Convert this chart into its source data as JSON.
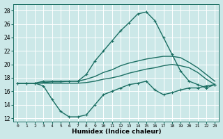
{
  "xlabel": "Humidex (Indice chaleur)",
  "xlim": [
    -0.5,
    23.5
  ],
  "ylim": [
    11.5,
    29
  ],
  "xticks": [
    0,
    1,
    2,
    3,
    4,
    5,
    6,
    7,
    8,
    9,
    10,
    11,
    12,
    13,
    14,
    15,
    16,
    17,
    18,
    19,
    20,
    21,
    22,
    23
  ],
  "yticks": [
    12,
    14,
    16,
    18,
    20,
    22,
    24,
    26,
    28
  ],
  "bg_color": "#cce8e8",
  "grid_color": "#ffffff",
  "line_color": "#1a6e62",
  "lines": [
    {
      "x": [
        0,
        1,
        2,
        3,
        4,
        5,
        6,
        7,
        8,
        9,
        10,
        11,
        12,
        13,
        14,
        15,
        16,
        17,
        18,
        19,
        20,
        21,
        22,
        23
      ],
      "y": [
        17.2,
        17.2,
        17.2,
        16.8,
        14.8,
        13.0,
        12.2,
        12.2,
        12.5,
        14.0,
        15.5,
        16.0,
        16.5,
        17.0,
        17.2,
        17.5,
        16.2,
        15.5,
        15.8,
        16.2,
        16.5,
        16.5,
        16.8,
        17.0
      ],
      "marker": true,
      "lw": 1.0
    },
    {
      "x": [
        0,
        1,
        2,
        3,
        4,
        5,
        6,
        7,
        8,
        9,
        10,
        11,
        12,
        13,
        14,
        15,
        16,
        17,
        18,
        19,
        20,
        21,
        22,
        23
      ],
      "y": [
        17.2,
        17.2,
        17.2,
        17.5,
        17.5,
        17.5,
        17.5,
        17.5,
        18.5,
        20.5,
        22.0,
        23.5,
        25.0,
        26.2,
        27.5,
        27.8,
        26.5,
        24.0,
        21.5,
        19.0,
        17.5,
        17.0,
        16.5,
        17.0
      ],
      "marker": true,
      "lw": 1.0
    },
    {
      "x": [
        0,
        1,
        2,
        3,
        4,
        5,
        6,
        7,
        8,
        9,
        10,
        11,
        12,
        13,
        14,
        15,
        16,
        17,
        18,
        19,
        20,
        21,
        22,
        23
      ],
      "y": [
        17.2,
        17.2,
        17.2,
        17.3,
        17.4,
        17.4,
        17.5,
        17.5,
        17.8,
        18.2,
        18.8,
        19.2,
        19.8,
        20.2,
        20.5,
        20.8,
        21.0,
        21.2,
        21.2,
        21.0,
        20.3,
        19.5,
        18.5,
        17.5
      ],
      "marker": false,
      "lw": 1.0
    },
    {
      "x": [
        0,
        1,
        2,
        3,
        4,
        5,
        6,
        7,
        8,
        9,
        10,
        11,
        12,
        13,
        14,
        15,
        16,
        17,
        18,
        19,
        20,
        21,
        22,
        23
      ],
      "y": [
        17.2,
        17.2,
        17.2,
        17.2,
        17.2,
        17.2,
        17.2,
        17.2,
        17.3,
        17.5,
        17.8,
        18.0,
        18.3,
        18.7,
        19.0,
        19.3,
        19.5,
        19.8,
        20.0,
        19.8,
        19.5,
        18.8,
        17.8,
        17.0
      ],
      "marker": false,
      "lw": 1.0
    }
  ]
}
